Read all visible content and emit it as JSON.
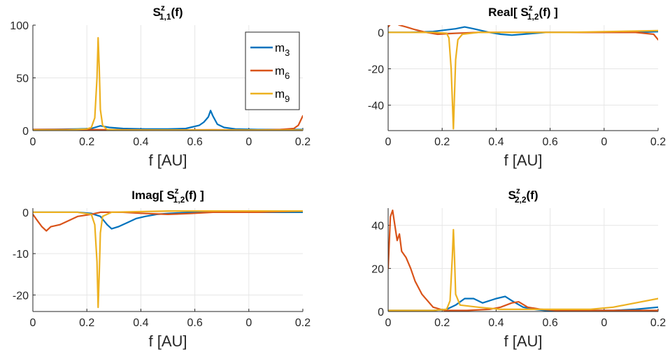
{
  "colors": {
    "m3": "#0072BD",
    "m6": "#D95319",
    "m9": "#EDB120",
    "axis": "#262626",
    "grid": "#e6e6e6"
  },
  "legend": {
    "placement": "top-right",
    "entries": [
      {
        "base": "m",
        "sub": "3",
        "series": "m3"
      },
      {
        "base": "m",
        "sub": "6",
        "series": "m6"
      },
      {
        "base": "m",
        "sub": "9",
        "series": "m9"
      }
    ]
  },
  "chart_data": [
    {
      "type": "line",
      "title": {
        "prefix": "S",
        "sup": "z",
        "sub": "1,1",
        "suffix": "(f)"
      },
      "xlabel": "f [AU]",
      "xticks": [
        "0",
        "0.2",
        "0.4",
        "0.6",
        "0",
        "0.2"
      ],
      "xlim": [
        0,
        1.2
      ],
      "ylim": [
        0,
        100
      ],
      "yticks": [
        0,
        50,
        100
      ],
      "grid": true,
      "series": [
        {
          "key": "m3",
          "name": "m3",
          "points": [
            [
              0,
              1
            ],
            [
              0.1,
              1.2
            ],
            [
              0.2,
              1.5
            ],
            [
              0.26,
              2
            ],
            [
              0.3,
              4.5
            ],
            [
              0.34,
              3
            ],
            [
              0.4,
              2
            ],
            [
              0.5,
              1.5
            ],
            [
              0.6,
              1.5
            ],
            [
              0.68,
              2
            ],
            [
              0.74,
              5
            ],
            [
              0.76,
              8
            ],
            [
              0.78,
              13
            ],
            [
              0.79,
              19
            ],
            [
              0.8,
              14
            ],
            [
              0.82,
              6
            ],
            [
              0.85,
              3
            ],
            [
              0.9,
              1.5
            ],
            [
              1.0,
              1
            ],
            [
              1.1,
              1
            ],
            [
              1.2,
              1
            ]
          ]
        },
        {
          "key": "m6",
          "name": "m6",
          "points": [
            [
              0,
              1
            ],
            [
              0.2,
              1
            ],
            [
              0.4,
              0.8
            ],
            [
              0.6,
              0.5
            ],
            [
              0.8,
              0.8
            ],
            [
              1.0,
              0.5
            ],
            [
              1.1,
              1
            ],
            [
              1.16,
              2
            ],
            [
              1.18,
              5
            ],
            [
              1.2,
              14
            ]
          ]
        },
        {
          "key": "m9",
          "name": "m9",
          "points": [
            [
              0,
              0.5
            ],
            [
              0.15,
              0.5
            ],
            [
              0.24,
              1.5
            ],
            [
              0.26,
              3
            ],
            [
              0.275,
              12
            ],
            [
              0.285,
              50
            ],
            [
              0.29,
              88
            ],
            [
              0.295,
              60
            ],
            [
              0.3,
              20
            ],
            [
              0.31,
              5
            ],
            [
              0.33,
              1
            ],
            [
              0.4,
              0.5
            ],
            [
              0.6,
              0.5
            ],
            [
              0.8,
              0.5
            ],
            [
              1.0,
              0.5
            ],
            [
              1.2,
              0.5
            ]
          ]
        }
      ],
      "legend": true
    },
    {
      "type": "line",
      "title": {
        "prefix": "Real[ S",
        "sup": "z",
        "sub": "1,2",
        "suffix": "(f) ]"
      },
      "xlabel": "f [AU]",
      "xticks": [
        "0",
        "0.2",
        "0.4",
        "0.6",
        "0",
        "0.2"
      ],
      "xlim": [
        0,
        1.2
      ],
      "ylim": [
        -54,
        4
      ],
      "yticks": [
        0,
        -20,
        -40
      ],
      "grid": true,
      "series": [
        {
          "key": "m3",
          "name": "m3",
          "points": [
            [
              0,
              0
            ],
            [
              0.1,
              0
            ],
            [
              0.2,
              0.5
            ],
            [
              0.3,
              2
            ],
            [
              0.34,
              3
            ],
            [
              0.38,
              2
            ],
            [
              0.45,
              0
            ],
            [
              0.5,
              -1
            ],
            [
              0.55,
              -1.5
            ],
            [
              0.6,
              -1
            ],
            [
              0.7,
              0
            ],
            [
              0.8,
              0
            ],
            [
              0.9,
              0
            ],
            [
              1.0,
              0
            ],
            [
              1.1,
              0
            ],
            [
              1.2,
              0.5
            ]
          ]
        },
        {
          "key": "m6",
          "name": "m6",
          "points": [
            [
              0,
              3
            ],
            [
              0.02,
              6
            ],
            [
              0.05,
              4
            ],
            [
              0.08,
              3
            ],
            [
              0.12,
              1.5
            ],
            [
              0.17,
              0
            ],
            [
              0.22,
              -1
            ],
            [
              0.3,
              -0.5
            ],
            [
              0.4,
              0
            ],
            [
              0.6,
              0
            ],
            [
              0.8,
              0
            ],
            [
              1.0,
              0
            ],
            [
              1.1,
              0
            ],
            [
              1.18,
              -1
            ],
            [
              1.2,
              -4
            ]
          ]
        },
        {
          "key": "m9",
          "name": "m9",
          "points": [
            [
              0,
              0
            ],
            [
              0.2,
              0
            ],
            [
              0.26,
              -0.5
            ],
            [
              0.27,
              -3
            ],
            [
              0.28,
              -20
            ],
            [
              0.29,
              -53
            ],
            [
              0.3,
              -15
            ],
            [
              0.31,
              -4
            ],
            [
              0.33,
              -1
            ],
            [
              0.4,
              0
            ],
            [
              0.6,
              0
            ],
            [
              0.8,
              0
            ],
            [
              1.0,
              0.5
            ],
            [
              1.2,
              1
            ]
          ]
        }
      ],
      "legend": false
    },
    {
      "type": "line",
      "title": {
        "prefix": "Imag[ S",
        "sup": "z",
        "sub": "1,2",
        "suffix": "(f) ]"
      },
      "xlabel": "f [AU]",
      "xticks": [
        "0",
        "0.2",
        "0.4",
        "0.6",
        "0",
        "0.2"
      ],
      "xlim": [
        0,
        1.2
      ],
      "ylim": [
        -24,
        1
      ],
      "yticks": [
        0,
        -10,
        -20
      ],
      "grid": true,
      "series": [
        {
          "key": "m3",
          "name": "m3",
          "points": [
            [
              0,
              0
            ],
            [
              0.1,
              0
            ],
            [
              0.2,
              0
            ],
            [
              0.26,
              -0.3
            ],
            [
              0.3,
              -1
            ],
            [
              0.33,
              -3
            ],
            [
              0.35,
              -4
            ],
            [
              0.38,
              -3.5
            ],
            [
              0.42,
              -2.5
            ],
            [
              0.46,
              -1.5
            ],
            [
              0.5,
              -1
            ],
            [
              0.55,
              -0.5
            ],
            [
              0.6,
              -0.3
            ],
            [
              0.7,
              0
            ],
            [
              0.8,
              0
            ],
            [
              0.9,
              0
            ],
            [
              1.0,
              0
            ],
            [
              1.2,
              0
            ]
          ]
        },
        {
          "key": "m6",
          "name": "m6",
          "points": [
            [
              0,
              -0.5
            ],
            [
              0.02,
              -2
            ],
            [
              0.04,
              -3.5
            ],
            [
              0.06,
              -4.5
            ],
            [
              0.08,
              -3.5
            ],
            [
              0.12,
              -3
            ],
            [
              0.16,
              -2
            ],
            [
              0.2,
              -1
            ],
            [
              0.26,
              -0.5
            ],
            [
              0.3,
              0
            ],
            [
              0.4,
              0
            ],
            [
              0.5,
              -0.3
            ],
            [
              0.6,
              -0.5
            ],
            [
              0.7,
              -0.3
            ],
            [
              0.8,
              0
            ],
            [
              1.0,
              0
            ],
            [
              1.2,
              0.3
            ]
          ]
        },
        {
          "key": "m9",
          "name": "m9",
          "points": [
            [
              0,
              0
            ],
            [
              0.2,
              0
            ],
            [
              0.26,
              -0.5
            ],
            [
              0.275,
              -3
            ],
            [
              0.285,
              -12
            ],
            [
              0.29,
              -23
            ],
            [
              0.295,
              -15
            ],
            [
              0.3,
              -5
            ],
            [
              0.31,
              -1
            ],
            [
              0.35,
              0
            ],
            [
              0.6,
              0.3
            ],
            [
              0.8,
              0.3
            ],
            [
              1.0,
              0.3
            ],
            [
              1.2,
              0.3
            ]
          ]
        }
      ],
      "legend": false
    },
    {
      "type": "line",
      "title": {
        "prefix": "S",
        "sup": "z",
        "sub": "2,2",
        "suffix": "(f)"
      },
      "xlabel": "f [AU]",
      "xticks": [
        "0",
        "0.2",
        "0.4",
        "0.6",
        "0",
        "0.2"
      ],
      "xlim": [
        0,
        1.2
      ],
      "ylim": [
        0,
        48
      ],
      "yticks": [
        0,
        20,
        40
      ],
      "grid": true,
      "series": [
        {
          "key": "m3",
          "name": "m3",
          "points": [
            [
              0,
              0.5
            ],
            [
              0.1,
              0.5
            ],
            [
              0.2,
              0.5
            ],
            [
              0.26,
              1
            ],
            [
              0.3,
              3
            ],
            [
              0.34,
              6
            ],
            [
              0.38,
              6
            ],
            [
              0.42,
              4
            ],
            [
              0.48,
              6
            ],
            [
              0.52,
              7
            ],
            [
              0.55,
              5
            ],
            [
              0.6,
              2
            ],
            [
              0.65,
              1
            ],
            [
              0.7,
              0.5
            ],
            [
              0.8,
              0.5
            ],
            [
              0.9,
              0.5
            ],
            [
              1.0,
              0.5
            ],
            [
              1.1,
              1
            ],
            [
              1.2,
              2
            ]
          ]
        },
        {
          "key": "m6",
          "name": "m6",
          "points": [
            [
              0,
              20
            ],
            [
              0.01,
              44
            ],
            [
              0.02,
              47
            ],
            [
              0.03,
              40
            ],
            [
              0.04,
              33
            ],
            [
              0.05,
              36
            ],
            [
              0.06,
              28
            ],
            [
              0.08,
              25
            ],
            [
              0.1,
              20
            ],
            [
              0.12,
              14
            ],
            [
              0.15,
              8
            ],
            [
              0.2,
              2
            ],
            [
              0.25,
              0.5
            ],
            [
              0.35,
              0.5
            ],
            [
              0.45,
              1
            ],
            [
              0.5,
              2
            ],
            [
              0.55,
              4
            ],
            [
              0.58,
              4.5
            ],
            [
              0.62,
              2
            ],
            [
              0.68,
              1
            ],
            [
              0.75,
              0.5
            ],
            [
              0.9,
              0.5
            ],
            [
              1.0,
              0.5
            ],
            [
              1.1,
              0.5
            ],
            [
              1.2,
              0.5
            ]
          ]
        },
        {
          "key": "m9",
          "name": "m9",
          "points": [
            [
              0,
              0.5
            ],
            [
              0.2,
              0.5
            ],
            [
              0.26,
              1
            ],
            [
              0.275,
              5
            ],
            [
              0.285,
              25
            ],
            [
              0.29,
              38
            ],
            [
              0.295,
              25
            ],
            [
              0.3,
              8
            ],
            [
              0.32,
              3
            ],
            [
              0.4,
              2
            ],
            [
              0.5,
              1
            ],
            [
              0.6,
              1
            ],
            [
              0.7,
              1
            ],
            [
              0.8,
              1
            ],
            [
              0.9,
              1
            ],
            [
              1.0,
              2
            ],
            [
              1.1,
              4
            ],
            [
              1.2,
              6
            ]
          ]
        }
      ],
      "legend": false
    }
  ]
}
